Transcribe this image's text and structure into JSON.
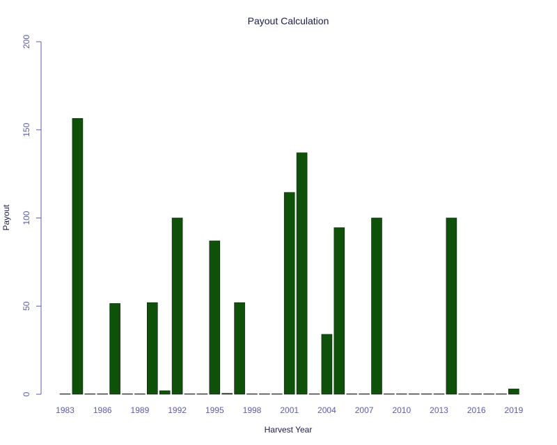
{
  "chart_data": {
    "type": "bar",
    "title": "Payout Calculation",
    "xlabel": "Harvest Year",
    "ylabel": "Payout",
    "ylim": [
      0,
      200
    ],
    "yticks": [
      "0",
      "50",
      "100",
      "150",
      "200"
    ],
    "xtick_labels": [
      "1983",
      "1986",
      "1989",
      "1992",
      "1995",
      "1998",
      "2001",
      "2004",
      "2007",
      "2010",
      "2013",
      "2016",
      "2019"
    ],
    "categories": [
      "1983",
      "1984",
      "1985",
      "1986",
      "1987",
      "1988",
      "1989",
      "1990",
      "1991",
      "1992",
      "1993",
      "1994",
      "1995",
      "1996",
      "1997",
      "1998",
      "1999",
      "2000",
      "2001",
      "2002",
      "2003",
      "2004",
      "2005",
      "2006",
      "2007",
      "2008",
      "2009",
      "2010",
      "2011",
      "2012",
      "2013",
      "2014",
      "2015",
      "2016",
      "2017",
      "2018",
      "2019"
    ],
    "values": [
      0,
      156.5,
      0,
      0,
      51.5,
      0,
      0,
      52,
      2,
      100,
      0,
      0,
      87,
      0.5,
      52,
      0,
      0,
      0,
      114.5,
      137,
      0,
      34,
      94.5,
      0,
      0,
      100,
      0,
      0,
      0,
      0,
      0,
      100,
      0,
      0,
      0,
      0,
      3
    ],
    "bar_color": "#0d5208",
    "axis_color": "#5b5bb0",
    "grid": false,
    "legend": "none"
  }
}
